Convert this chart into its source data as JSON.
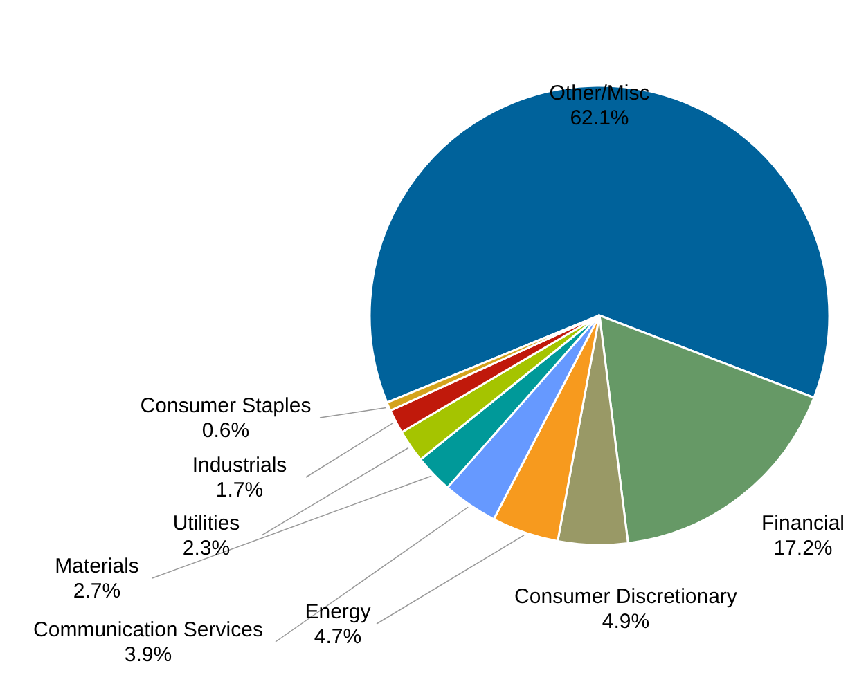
{
  "chart_data": {
    "type": "pie",
    "categories": [
      "Other/Misc",
      "Financial",
      "Consumer Discretionary",
      "Energy",
      "Communication Services",
      "Materials",
      "Utilities",
      "Industrials",
      "Consumer Staples"
    ],
    "values": [
      62.1,
      17.2,
      4.9,
      4.7,
      3.9,
      2.7,
      2.3,
      1.7,
      0.6
    ],
    "colors": [
      "#00629b",
      "#669966",
      "#999966",
      "#f79a1e",
      "#6699ff",
      "#009999",
      "#a5c400",
      "#c0190b",
      "#d4a31c"
    ],
    "value_labels": [
      "62.1%",
      "17.2%",
      "4.9%",
      "4.7%",
      "3.9%",
      "2.7%",
      "2.3%",
      "1.7%",
      "0.6%"
    ]
  }
}
